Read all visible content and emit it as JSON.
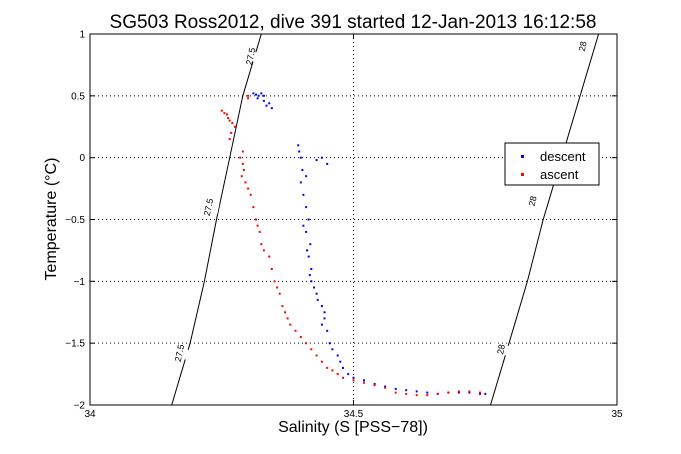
{
  "chart_data": {
    "type": "scatter",
    "title": "SG503 Ross2012, dive 391 started 12-Jan-2013 16:12:58",
    "xlabel": "Salinity (S [PSS−78])",
    "ylabel": "Temperature (°C)",
    "xlim": [
      34,
      35
    ],
    "ylim": [
      -2,
      1
    ],
    "x_ticks": [
      34,
      34.5,
      35
    ],
    "x_tick_labels": [
      "34",
      "34.5",
      "35"
    ],
    "y_ticks": [
      -2,
      -1.5,
      -1,
      -0.5,
      0,
      0.5,
      1
    ],
    "y_tick_labels": [
      "−2",
      "−1.5",
      "−1",
      "−0.5",
      "0",
      "0.5",
      "1"
    ],
    "grid": true,
    "legend": "right",
    "contours": [
      {
        "label": "27.5",
        "points": [
          [
            34.155,
            -2
          ],
          [
            34.19,
            -1.5
          ],
          [
            34.217,
            -1.0
          ],
          [
            34.24,
            -0.5
          ],
          [
            34.265,
            0
          ],
          [
            34.29,
            0.5
          ],
          [
            34.325,
            1.0
          ]
        ],
        "label_positions": [
          [
            34.17,
            -1.58
          ],
          [
            34.225,
            -0.4
          ],
          [
            34.305,
            0.82
          ]
        ]
      },
      {
        "label": "28",
        "points": [
          [
            34.76,
            -2
          ],
          [
            34.795,
            -1.5
          ],
          [
            34.83,
            -1.0
          ],
          [
            34.86,
            -0.5
          ],
          [
            34.895,
            0
          ],
          [
            34.93,
            0.5
          ],
          [
            34.965,
            1.0
          ]
        ],
        "label_positions": [
          [
            34.78,
            -1.55
          ],
          [
            34.84,
            -0.35
          ],
          [
            34.935,
            0.9
          ]
        ]
      }
    ],
    "series": [
      {
        "name": "descent",
        "color": "#0000ff",
        "points": [
          [
            34.31,
            0.52
          ],
          [
            34.315,
            0.51
          ],
          [
            34.32,
            0.5
          ],
          [
            34.325,
            0.52
          ],
          [
            34.33,
            0.5
          ],
          [
            34.318,
            0.48
          ],
          [
            34.33,
            0.46
          ],
          [
            34.335,
            0.42
          ],
          [
            34.34,
            0.44
          ],
          [
            34.345,
            0.4
          ],
          [
            34.395,
            0.1
          ],
          [
            34.397,
            0.05
          ],
          [
            34.4,
            0.0
          ],
          [
            34.403,
            -0.1
          ],
          [
            34.41,
            -0.15
          ],
          [
            34.4,
            -0.2
          ],
          [
            34.405,
            -0.3
          ],
          [
            34.41,
            -0.4
          ],
          [
            34.415,
            -0.5
          ],
          [
            34.405,
            -0.55
          ],
          [
            34.41,
            -0.6
          ],
          [
            34.418,
            -0.7
          ],
          [
            34.412,
            -0.75
          ],
          [
            34.415,
            -0.8
          ],
          [
            34.42,
            -0.9
          ],
          [
            34.417,
            -0.95
          ],
          [
            34.42,
            -1.0
          ],
          [
            34.425,
            -1.05
          ],
          [
            34.43,
            -1.1
          ],
          [
            34.432,
            -1.15
          ],
          [
            34.44,
            -1.2
          ],
          [
            34.445,
            -1.25
          ],
          [
            34.445,
            -1.3
          ],
          [
            34.44,
            -1.35
          ],
          [
            34.45,
            -1.4
          ],
          [
            34.455,
            -1.5
          ],
          [
            34.46,
            -1.55
          ],
          [
            34.47,
            -1.6
          ],
          [
            34.475,
            -1.65
          ],
          [
            34.48,
            -1.7
          ],
          [
            34.49,
            -1.75
          ],
          [
            34.5,
            -1.78
          ],
          [
            34.52,
            -1.8
          ],
          [
            34.54,
            -1.83
          ],
          [
            34.56,
            -1.85
          ],
          [
            34.58,
            -1.87
          ],
          [
            34.6,
            -1.88
          ],
          [
            34.62,
            -1.89
          ],
          [
            34.64,
            -1.9
          ],
          [
            34.66,
            -1.91
          ],
          [
            34.68,
            -1.9
          ],
          [
            34.7,
            -1.9
          ],
          [
            34.72,
            -1.9
          ],
          [
            34.74,
            -1.91
          ],
          [
            34.75,
            -1.91
          ],
          [
            34.44,
            0.0
          ],
          [
            34.43,
            -0.02
          ],
          [
            34.45,
            -0.05
          ]
        ]
      },
      {
        "name": "ascent",
        "color": "#ff0000",
        "points": [
          [
            34.25,
            0.38
          ],
          [
            34.255,
            0.36
          ],
          [
            34.26,
            0.35
          ],
          [
            34.262,
            0.32
          ],
          [
            34.265,
            0.3
          ],
          [
            34.27,
            0.28
          ],
          [
            34.275,
            0.25
          ],
          [
            34.268,
            0.2
          ],
          [
            34.265,
            0.15
          ],
          [
            34.29,
            0.05
          ],
          [
            34.285,
            0.0
          ],
          [
            34.29,
            -0.05
          ],
          [
            34.292,
            -0.1
          ],
          [
            34.288,
            -0.15
          ],
          [
            34.295,
            -0.2
          ],
          [
            34.3,
            -0.25
          ],
          [
            34.305,
            -0.3
          ],
          [
            34.31,
            -0.4
          ],
          [
            34.315,
            -0.5
          ],
          [
            34.318,
            -0.55
          ],
          [
            34.322,
            -0.6
          ],
          [
            34.325,
            -0.7
          ],
          [
            34.33,
            -0.75
          ],
          [
            34.34,
            -0.8
          ],
          [
            34.345,
            -0.9
          ],
          [
            34.35,
            -1.0
          ],
          [
            34.355,
            -1.05
          ],
          [
            34.36,
            -1.1
          ],
          [
            34.365,
            -1.2
          ],
          [
            34.37,
            -1.25
          ],
          [
            34.375,
            -1.3
          ],
          [
            34.38,
            -1.35
          ],
          [
            34.39,
            -1.4
          ],
          [
            34.4,
            -1.45
          ],
          [
            34.41,
            -1.5
          ],
          [
            34.42,
            -1.55
          ],
          [
            34.43,
            -1.6
          ],
          [
            34.44,
            -1.65
          ],
          [
            34.45,
            -1.7
          ],
          [
            34.46,
            -1.72
          ],
          [
            34.47,
            -1.75
          ],
          [
            34.48,
            -1.78
          ],
          [
            34.5,
            -1.8
          ],
          [
            34.52,
            -1.82
          ],
          [
            34.54,
            -1.84
          ],
          [
            34.56,
            -1.86
          ],
          [
            34.58,
            -1.9
          ],
          [
            34.6,
            -1.91
          ],
          [
            34.62,
            -1.92
          ],
          [
            34.64,
            -1.92
          ],
          [
            34.66,
            -1.91
          ],
          [
            34.68,
            -1.9
          ],
          [
            34.7,
            -1.89
          ],
          [
            34.72,
            -1.89
          ],
          [
            34.74,
            -1.9
          ],
          [
            34.3,
            0.5
          ],
          [
            34.3,
            0.48
          ]
        ]
      }
    ]
  }
}
